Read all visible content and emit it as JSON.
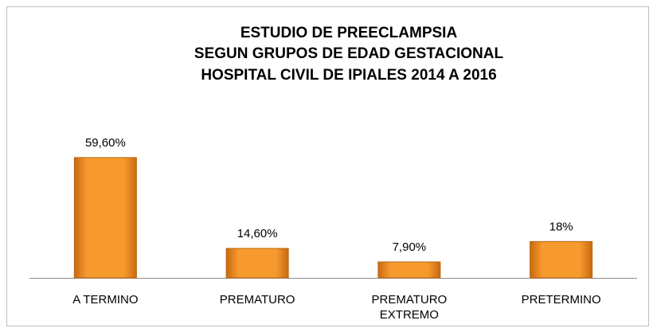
{
  "chart_data": {
    "type": "bar",
    "title": [
      "ESTUDIO DE PREECLAMPSIA",
      "SEGUN GRUPOS DE EDAD GESTACIONAL",
      "HOSPITAL CIVIL DE IPIALES 2014 A 2016"
    ],
    "categories": [
      "A TERMINO",
      "PREMATURO",
      "PREMATURO EXTREMO",
      "PRETERMINO"
    ],
    "values": [
      59.6,
      14.6,
      7.9,
      18
    ],
    "value_labels": [
      "59,60%",
      "14,60%",
      "7,90%",
      "18%"
    ],
    "color": "#f79a2e"
  }
}
